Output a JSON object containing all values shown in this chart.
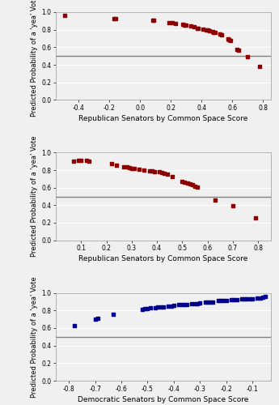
{
  "panels": [
    {
      "xlabel": "Republican Senators by Common Space Score",
      "ylabel": "Predicted Probability of a 'yea' Vote",
      "xlim": [
        -0.55,
        0.85
      ],
      "ylim": [
        0.0,
        1.0
      ],
      "xticks": [
        -0.4,
        -0.2,
        0.0,
        0.2,
        0.4,
        0.6,
        0.8
      ],
      "yticks": [
        0.0,
        0.2,
        0.4,
        0.6,
        0.8,
        1.0
      ],
      "hline": 0.5,
      "color": "#8B0000",
      "points": [
        [
          -0.49,
          0.96
        ],
        [
          -0.17,
          0.93
        ],
        [
          -0.16,
          0.93
        ],
        [
          0.08,
          0.91
        ],
        [
          0.09,
          0.91
        ],
        [
          0.19,
          0.88
        ],
        [
          0.21,
          0.88
        ],
        [
          0.23,
          0.87
        ],
        [
          0.28,
          0.86
        ],
        [
          0.29,
          0.85
        ],
        [
          0.3,
          0.85
        ],
        [
          0.33,
          0.84
        ],
        [
          0.35,
          0.83
        ],
        [
          0.37,
          0.82
        ],
        [
          0.38,
          0.82
        ],
        [
          0.41,
          0.81
        ],
        [
          0.43,
          0.8
        ],
        [
          0.44,
          0.8
        ],
        [
          0.45,
          0.79
        ],
        [
          0.47,
          0.78
        ],
        [
          0.48,
          0.77
        ],
        [
          0.49,
          0.77
        ],
        [
          0.52,
          0.75
        ],
        [
          0.53,
          0.74
        ],
        [
          0.57,
          0.7
        ],
        [
          0.58,
          0.69
        ],
        [
          0.59,
          0.68
        ],
        [
          0.63,
          0.58
        ],
        [
          0.64,
          0.57
        ],
        [
          0.7,
          0.49
        ],
        [
          0.78,
          0.38
        ]
      ]
    },
    {
      "xlabel": "Republican Senators by Common Space Score",
      "ylabel": "Predicted Probability of a 'yea' Vote",
      "xlim": [
        0.0,
        0.85
      ],
      "ylim": [
        0.0,
        1.0
      ],
      "xticks": [
        0.1,
        0.2,
        0.3,
        0.4,
        0.5,
        0.6,
        0.7,
        0.8
      ],
      "yticks": [
        0.0,
        0.2,
        0.4,
        0.6,
        0.8,
        1.0
      ],
      "hline": 0.5,
      "color": "#8B0000",
      "points": [
        [
          0.07,
          0.9
        ],
        [
          0.09,
          0.91
        ],
        [
          0.1,
          0.91
        ],
        [
          0.12,
          0.91
        ],
        [
          0.13,
          0.9
        ],
        [
          0.22,
          0.87
        ],
        [
          0.24,
          0.86
        ],
        [
          0.27,
          0.84
        ],
        [
          0.28,
          0.84
        ],
        [
          0.29,
          0.83
        ],
        [
          0.3,
          0.82
        ],
        [
          0.31,
          0.82
        ],
        [
          0.33,
          0.81
        ],
        [
          0.35,
          0.8
        ],
        [
          0.37,
          0.79
        ],
        [
          0.38,
          0.79
        ],
        [
          0.39,
          0.78
        ],
        [
          0.41,
          0.78
        ],
        [
          0.42,
          0.77
        ],
        [
          0.43,
          0.76
        ],
        [
          0.44,
          0.75
        ],
        [
          0.46,
          0.73
        ],
        [
          0.5,
          0.67
        ],
        [
          0.51,
          0.66
        ],
        [
          0.52,
          0.65
        ],
        [
          0.53,
          0.64
        ],
        [
          0.54,
          0.63
        ],
        [
          0.55,
          0.62
        ],
        [
          0.56,
          0.61
        ],
        [
          0.63,
          0.46
        ],
        [
          0.7,
          0.39
        ],
        [
          0.79,
          0.26
        ]
      ]
    },
    {
      "xlabel": "Democratic Senators by Common Space Score",
      "ylabel": "Predicted Probability of a 'yea' Vote",
      "xlim": [
        -0.85,
        -0.03
      ],
      "ylim": [
        0.0,
        1.0
      ],
      "xticks": [
        -0.8,
        -0.7,
        -0.6,
        -0.5,
        -0.4,
        -0.3,
        -0.2,
        -0.1
      ],
      "yticks": [
        0.0,
        0.2,
        0.4,
        0.6,
        0.8,
        1.0
      ],
      "hline": 0.5,
      "color": "#00008B",
      "points": [
        [
          -0.78,
          0.63
        ],
        [
          -0.7,
          0.7
        ],
        [
          -0.69,
          0.71
        ],
        [
          -0.63,
          0.76
        ],
        [
          -0.52,
          0.81
        ],
        [
          -0.51,
          0.82
        ],
        [
          -0.5,
          0.82
        ],
        [
          -0.49,
          0.83
        ],
        [
          -0.47,
          0.83
        ],
        [
          -0.46,
          0.84
        ],
        [
          -0.45,
          0.84
        ],
        [
          -0.44,
          0.84
        ],
        [
          -0.42,
          0.85
        ],
        [
          -0.41,
          0.85
        ],
        [
          -0.4,
          0.86
        ],
        [
          -0.38,
          0.87
        ],
        [
          -0.37,
          0.87
        ],
        [
          -0.36,
          0.87
        ],
        [
          -0.35,
          0.87
        ],
        [
          -0.33,
          0.88
        ],
        [
          -0.32,
          0.88
        ],
        [
          -0.31,
          0.88
        ],
        [
          -0.3,
          0.89
        ],
        [
          -0.28,
          0.9
        ],
        [
          -0.27,
          0.9
        ],
        [
          -0.26,
          0.9
        ],
        [
          -0.25,
          0.9
        ],
        [
          -0.23,
          0.91
        ],
        [
          -0.22,
          0.91
        ],
        [
          -0.21,
          0.91
        ],
        [
          -0.2,
          0.91
        ],
        [
          -0.18,
          0.92
        ],
        [
          -0.17,
          0.92
        ],
        [
          -0.16,
          0.92
        ],
        [
          -0.14,
          0.93
        ],
        [
          -0.13,
          0.93
        ],
        [
          -0.12,
          0.93
        ],
        [
          -0.11,
          0.93
        ],
        [
          -0.1,
          0.93
        ],
        [
          -0.08,
          0.94
        ],
        [
          -0.07,
          0.94
        ],
        [
          -0.06,
          0.95
        ],
        [
          -0.05,
          0.96
        ]
      ]
    }
  ],
  "bg_color": "#f0f0f0",
  "grid_color": "#ffffff",
  "marker_size": 5,
  "hline_color": "#808080",
  "hline_lw": 1.0
}
